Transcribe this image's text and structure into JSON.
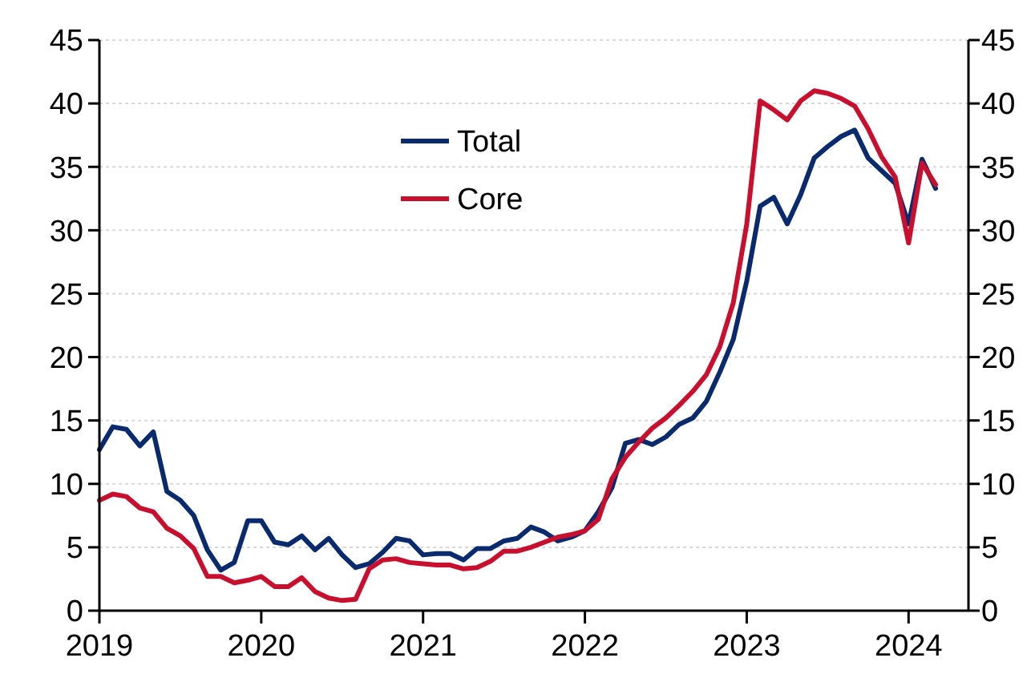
{
  "chart_data": {
    "type": "line",
    "x": [
      2019,
      2019.083,
      2019.167,
      2019.25,
      2019.333,
      2019.417,
      2019.5,
      2019.583,
      2019.667,
      2019.75,
      2019.833,
      2019.917,
      2020,
      2020.083,
      2020.167,
      2020.25,
      2020.333,
      2020.417,
      2020.5,
      2020.583,
      2020.667,
      2020.75,
      2020.833,
      2020.917,
      2021,
      2021.083,
      2021.167,
      2021.25,
      2021.333,
      2021.417,
      2021.5,
      2021.583,
      2021.667,
      2021.75,
      2021.833,
      2021.917,
      2022,
      2022.083,
      2022.167,
      2022.25,
      2022.333,
      2022.417,
      2022.5,
      2022.583,
      2022.667,
      2022.75,
      2022.833,
      2022.917,
      2023,
      2023.083,
      2023.167,
      2023.25,
      2023.333,
      2023.417,
      2023.5,
      2023.583,
      2023.667,
      2023.75,
      2023.833,
      2023.917,
      2024,
      2024.083,
      2024.167
    ],
    "series": [
      {
        "name": "Total",
        "color": "#0a2a6e",
        "values": [
          12.7,
          14.5,
          14.3,
          13.0,
          14.1,
          9.4,
          8.7,
          7.5,
          4.8,
          3.2,
          3.8,
          7.1,
          7.1,
          5.4,
          5.2,
          5.9,
          4.8,
          5.7,
          4.4,
          3.4,
          3.7,
          4.6,
          5.7,
          5.5,
          4.4,
          4.5,
          4.5,
          4.0,
          4.9,
          4.9,
          5.5,
          5.7,
          6.6,
          6.2,
          5.5,
          5.8,
          6.3,
          7.8,
          9.7,
          13.2,
          13.5,
          13.1,
          13.7,
          14.7,
          15.2,
          16.5,
          18.8,
          21.4,
          26.0,
          31.9,
          32.6,
          30.5,
          32.8,
          35.7,
          36.6,
          37.4,
          37.9,
          35.7,
          34.7,
          33.7,
          30.5,
          35.6,
          33.3
        ]
      },
      {
        "name": "Core",
        "color": "#c8102e",
        "values": [
          8.7,
          9.2,
          9.0,
          8.1,
          7.8,
          6.5,
          5.9,
          4.9,
          2.7,
          2.7,
          2.2,
          2.4,
          2.7,
          1.9,
          1.9,
          2.6,
          1.5,
          1.0,
          0.8,
          0.9,
          3.3,
          4.0,
          4.1,
          3.8,
          3.7,
          3.6,
          3.6,
          3.3,
          3.4,
          3.9,
          4.7,
          4.7,
          5.0,
          5.4,
          5.8,
          6.0,
          6.3,
          7.2,
          10.4,
          12.1,
          13.3,
          14.4,
          15.2,
          16.2,
          17.3,
          18.6,
          20.8,
          24.3,
          30.5,
          40.2,
          39.5,
          38.7,
          40.2,
          41.0,
          40.8,
          40.4,
          39.8,
          38.0,
          35.8,
          34.2,
          29.0,
          35.3,
          33.6
        ]
      }
    ],
    "xlim": [
      2019,
      2024.37
    ],
    "xticks": [
      2019,
      2020,
      2021,
      2022,
      2023,
      2024
    ],
    "ylim": [
      0,
      45
    ],
    "yticks": [
      0,
      5,
      10,
      15,
      20,
      25,
      30,
      35,
      40,
      45
    ],
    "y2lim": [
      0,
      45
    ],
    "y2ticks": [
      0,
      5,
      10,
      15,
      20,
      25,
      30,
      35,
      40,
      45
    ],
    "grid": "y",
    "legend": "top"
  }
}
